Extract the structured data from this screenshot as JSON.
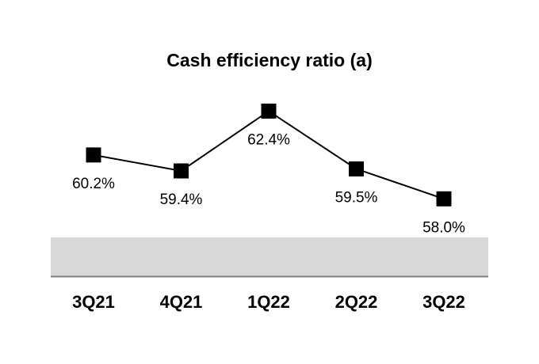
{
  "chart_data": {
    "type": "line",
    "title": "Cash efficiency ratio (a)",
    "xlabel": "",
    "ylabel": "",
    "categories": [
      "3Q21",
      "4Q21",
      "1Q22",
      "2Q22",
      "3Q22"
    ],
    "values": [
      60.2,
      59.4,
      62.4,
      59.5,
      58.0
    ],
    "data_labels": [
      "60.2%",
      "59.4%",
      "62.4%",
      "59.5%",
      "58.0%"
    ],
    "marker": "square",
    "grid": false,
    "legend": "none",
    "colors": {
      "line": "#000000",
      "marker": "#000000",
      "band": "#d9d9d9",
      "axis": "#808080"
    }
  }
}
